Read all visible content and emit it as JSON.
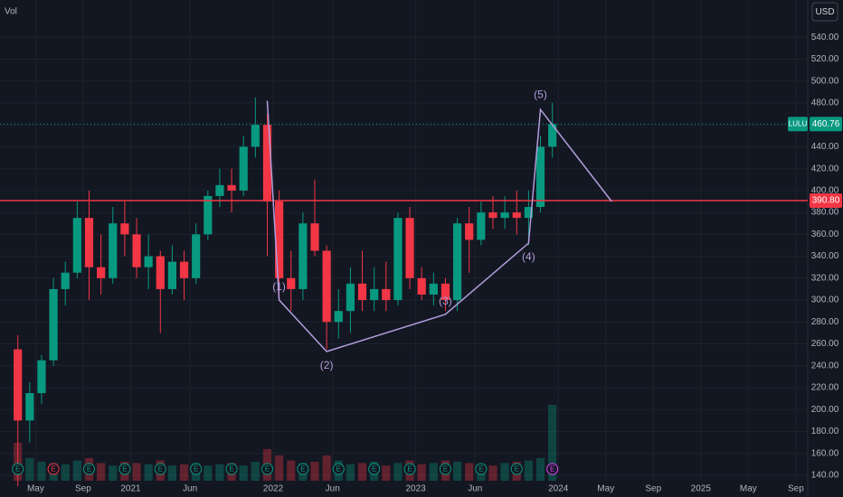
{
  "chart_data": {
    "type": "candlestick",
    "axis_label": "Vol",
    "currency": "USD",
    "xlim": [
      "2020-02",
      "2025-10"
    ],
    "xticks": [
      {
        "value": "2020-05",
        "label": "May"
      },
      {
        "value": "2020-09",
        "label": "Sep"
      },
      {
        "value": "2021-01",
        "label": "2021"
      },
      {
        "value": "2021-06",
        "label": "Jun"
      },
      {
        "value": "2022-01",
        "label": "2022"
      },
      {
        "value": "2022-06",
        "label": "Jun"
      },
      {
        "value": "2023-01",
        "label": "2023"
      },
      {
        "value": "2023-06",
        "label": "Jun"
      },
      {
        "value": "2024-01",
        "label": "2024"
      },
      {
        "value": "2024-05",
        "label": "May"
      },
      {
        "value": "2024-09",
        "label": "Sep"
      },
      {
        "value": "2025-01",
        "label": "2025"
      },
      {
        "value": "2025-05",
        "label": "May"
      },
      {
        "value": "2025-09",
        "label": "Sep"
      }
    ],
    "ylim": [
      135,
      574
    ],
    "yticks": [
      {
        "value": 140,
        "label": "140.00"
      },
      {
        "value": 160,
        "label": "160.00"
      },
      {
        "value": 180,
        "label": "180.00"
      },
      {
        "value": 200,
        "label": "200.00"
      },
      {
        "value": 220,
        "label": "220.00"
      },
      {
        "value": 240,
        "label": "240.00"
      },
      {
        "value": 260,
        "label": "260.00"
      },
      {
        "value": 280,
        "label": "280.00"
      },
      {
        "value": 300,
        "label": "300.00"
      },
      {
        "value": 320,
        "label": "320.00"
      },
      {
        "value": 340,
        "label": "340.00"
      },
      {
        "value": 360,
        "label": "360.00"
      },
      {
        "value": 380,
        "label": "380.00"
      },
      {
        "value": 400,
        "label": "400.00"
      },
      {
        "value": 420,
        "label": "420.00"
      },
      {
        "value": 440,
        "label": "440.00"
      },
      {
        "value": 460,
        "label": "460.00"
      },
      {
        "value": 480,
        "label": "480.00"
      },
      {
        "value": 500,
        "label": "500.00"
      },
      {
        "value": 520,
        "label": "520.00"
      },
      {
        "value": 540,
        "label": "540.00"
      }
    ],
    "grid": true,
    "up_color": "#089981",
    "down_color": "#f23645",
    "x": [
      "2020-03",
      "2020-04",
      "2020-05",
      "2020-06",
      "2020-07",
      "2020-08",
      "2020-09",
      "2020-10",
      "2020-11",
      "2020-12",
      "2021-01",
      "2021-02",
      "2021-03",
      "2021-04",
      "2021-05",
      "2021-06",
      "2021-07",
      "2021-08",
      "2021-09",
      "2021-10",
      "2021-11",
      "2021-12",
      "2022-01",
      "2022-02",
      "2022-03",
      "2022-04",
      "2022-05",
      "2022-06",
      "2022-07",
      "2022-08",
      "2022-09",
      "2022-10",
      "2022-11",
      "2022-12",
      "2023-01",
      "2023-02",
      "2023-03",
      "2023-04",
      "2023-05",
      "2023-06",
      "2023-07",
      "2023-08",
      "2023-09",
      "2023-10",
      "2023-11",
      "2023-12"
    ],
    "open": [
      255,
      190,
      215,
      245,
      310,
      325,
      375,
      330,
      320,
      370,
      360,
      330,
      340,
      310,
      335,
      320,
      360,
      395,
      405,
      400,
      440,
      460,
      390,
      320,
      310,
      370,
      345,
      280,
      290,
      315,
      300,
      310,
      300,
      375,
      320,
      305,
      315,
      300,
      370,
      355,
      380,
      375,
      380,
      375,
      385,
      440
    ],
    "high": [
      268,
      225,
      250,
      320,
      335,
      390,
      400,
      360,
      385,
      390,
      375,
      360,
      345,
      350,
      345,
      370,
      400,
      420,
      420,
      450,
      485,
      470,
      400,
      345,
      380,
      410,
      350,
      310,
      330,
      345,
      330,
      335,
      380,
      385,
      330,
      325,
      320,
      375,
      385,
      390,
      395,
      395,
      400,
      400,
      450,
      480
    ],
    "low": [
      130,
      170,
      205,
      240,
      295,
      320,
      300,
      305,
      315,
      340,
      320,
      310,
      270,
      305,
      300,
      315,
      355,
      385,
      380,
      395,
      430,
      340,
      300,
      290,
      300,
      340,
      255,
      265,
      270,
      290,
      290,
      290,
      295,
      310,
      300,
      295,
      290,
      290,
      325,
      350,
      365,
      365,
      360,
      350,
      380,
      430
    ],
    "close": [
      190,
      215,
      245,
      310,
      325,
      375,
      330,
      320,
      370,
      360,
      330,
      340,
      310,
      335,
      320,
      360,
      395,
      405,
      400,
      440,
      460,
      390,
      320,
      310,
      370,
      345,
      280,
      290,
      315,
      300,
      310,
      300,
      375,
      320,
      305,
      315,
      300,
      370,
      355,
      380,
      375,
      380,
      375,
      385,
      440,
      460.76
    ],
    "volume": [
      30,
      18,
      15,
      14,
      13,
      16,
      18,
      14,
      12,
      15,
      14,
      13,
      16,
      12,
      13,
      14,
      12,
      13,
      14,
      12,
      15,
      25,
      20,
      16,
      14,
      15,
      20,
      16,
      13,
      14,
      15,
      12,
      14,
      16,
      13,
      14,
      16,
      15,
      14,
      13,
      12,
      14,
      15,
      16,
      18,
      60
    ],
    "vlim": [
      0,
      100
    ],
    "last": {
      "symbol": "LULU",
      "value": 460.76,
      "color": "#089981"
    },
    "hline": {
      "value": 390.8,
      "label": "390.80",
      "color": "#f23645"
    },
    "wave": {
      "x": [
        "2021-12",
        "2022-01",
        "2022-05",
        "2023-03",
        "2023-10",
        "2023-11",
        "2024-05"
      ],
      "values": [
        482,
        300,
        253,
        287,
        352,
        474,
        390
      ],
      "labels": [
        null,
        "(1)",
        "(2)",
        "(3)",
        "(4)",
        "(5)",
        null
      ],
      "color": "#b39ddb"
    },
    "earnings": {
      "label": "E",
      "x": [
        "2020-03",
        "2020-06",
        "2020-09",
        "2020-12",
        "2021-03",
        "2021-06",
        "2021-09",
        "2021-12",
        "2022-03",
        "2022-06",
        "2022-09",
        "2022-12",
        "2023-03",
        "2023-06",
        "2023-09",
        "2023-12"
      ],
      "colors": [
        "#089981",
        "#f23645",
        "#089981",
        "#089981",
        "#089981",
        "#089981",
        "#089981",
        "#089981",
        "#089981",
        "#089981",
        "#089981",
        "#089981",
        "#089981",
        "#089981",
        "#089981",
        "#e040fb"
      ]
    }
  }
}
